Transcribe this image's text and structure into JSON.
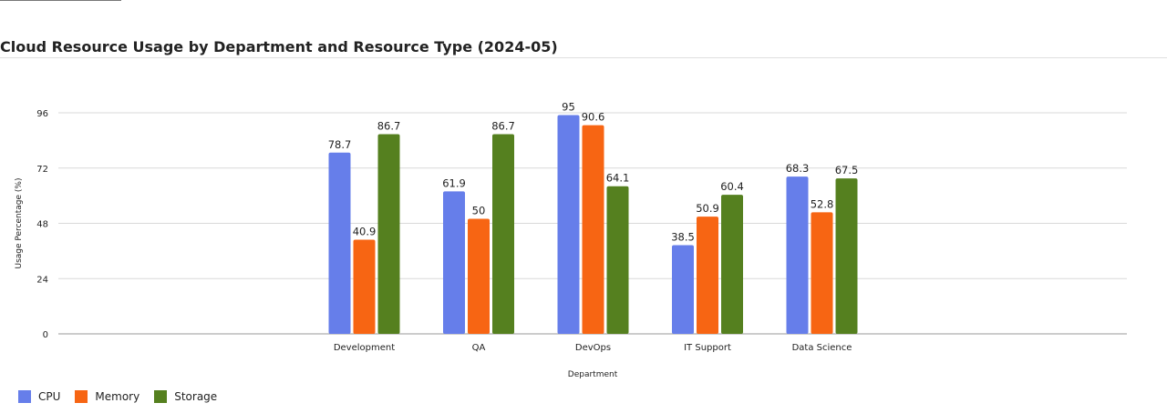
{
  "page": {
    "title": "Cloud Resource Usage by Department and Resource Type (2024-05)"
  },
  "chart_data": {
    "type": "bar",
    "title": "Cloud Resource Usage by Department and Resource Type (2024-05)",
    "xlabel": "Department",
    "ylabel": "Usage Percentage (%)",
    "ylim": [
      0,
      96
    ],
    "yticks": [
      0,
      24,
      48,
      72,
      96
    ],
    "grid": true,
    "legend_position": "bottom-left",
    "categories": [
      "Development",
      "QA",
      "DevOps",
      "IT Support",
      "Data Science"
    ],
    "series": [
      {
        "name": "CPU",
        "color": "#667eea",
        "values": [
          78.7,
          61.9,
          95,
          38.5,
          68.3
        ]
      },
      {
        "name": "Memory",
        "color": "#f76513",
        "values": [
          40.9,
          50,
          90.6,
          50.9,
          52.8
        ]
      },
      {
        "name": "Storage",
        "color": "#55801f",
        "values": [
          86.7,
          86.7,
          64.1,
          60.4,
          67.5
        ]
      }
    ]
  }
}
